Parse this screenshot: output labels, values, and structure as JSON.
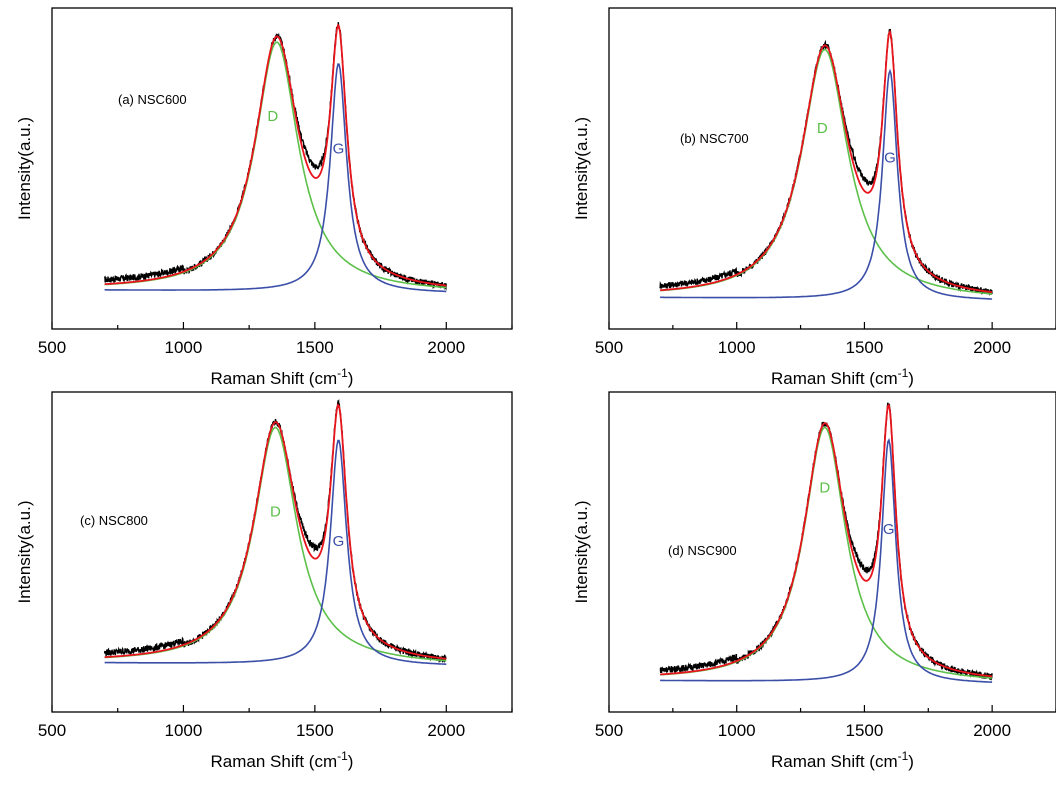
{
  "figure": {
    "peak_colors": {
      "measured": "#000000",
      "fit": "#e8141c",
      "D": "#5cc04a",
      "G": "#3b4fa8"
    }
  },
  "chart_data": [
    {
      "type": "line",
      "panel_label": "(a) NSC600",
      "xlabel": "Raman Shift (cm",
      "xlabel_sup": "-1",
      "xlabel_close": ")",
      "ylabel": "Intensity(a.u.)",
      "xlim": [
        500,
        2250
      ],
      "x_ticks": [
        500,
        1000,
        1500,
        2000
      ],
      "x_range_data": [
        700,
        2000
      ],
      "ylim": [
        0,
        1.08
      ],
      "baseline": 0.125,
      "D": {
        "center": 1355,
        "height": 0.84,
        "width": 200
      },
      "G": {
        "center": 1590,
        "height": 0.77,
        "width": 75
      },
      "peak_labels": [
        {
          "text": "D",
          "x": 1340,
          "y": 0.7,
          "color": "#5cc04a"
        },
        {
          "text": "G",
          "x": 1590,
          "y": 0.59,
          "color": "#3b4fa8"
        }
      ],
      "series": [
        {
          "name": "D",
          "color": "#5cc04a"
        },
        {
          "name": "G",
          "color": "#3b4fa8"
        }
      ]
    },
    {
      "type": "line",
      "panel_label": "(b) NSC700",
      "xlabel": "Raman Shift (cm",
      "xlabel_sup": "-1",
      "xlabel_close": ")",
      "ylabel": "Intensity(a.u.)",
      "xlim": [
        500,
        2250
      ],
      "x_ticks": [
        500,
        1000,
        1500,
        2000
      ],
      "x_range_data": [
        700,
        2000
      ],
      "ylim": [
        0,
        1.08
      ],
      "baseline": 0.1,
      "D": {
        "center": 1345,
        "height": 0.84,
        "width": 220
      },
      "G": {
        "center": 1600,
        "height": 0.77,
        "width": 70
      },
      "peak_labels": [
        {
          "text": "D",
          "x": 1335,
          "y": 0.66,
          "color": "#5cc04a"
        },
        {
          "text": "G",
          "x": 1600,
          "y": 0.56,
          "color": "#3b4fa8"
        }
      ],
      "series": [
        {
          "name": "D",
          "color": "#5cc04a"
        },
        {
          "name": "G",
          "color": "#3b4fa8"
        }
      ]
    },
    {
      "type": "line",
      "panel_label": "(c) NSC800",
      "xlabel": "Raman Shift (cm",
      "xlabel_sup": "-1",
      "xlabel_close": ")",
      "ylabel": "Intensity(a.u.)",
      "xlim": [
        500,
        2250
      ],
      "x_ticks": [
        500,
        1000,
        1500,
        2000
      ],
      "x_range_data": [
        700,
        2000
      ],
      "ylim": [
        0,
        1.08
      ],
      "baseline": 0.16,
      "D": {
        "center": 1350,
        "height": 0.8,
        "width": 200
      },
      "G": {
        "center": 1590,
        "height": 0.76,
        "width": 75
      },
      "peak_labels": [
        {
          "text": "D",
          "x": 1350,
          "y": 0.66,
          "color": "#5cc04a"
        },
        {
          "text": "G",
          "x": 1590,
          "y": 0.56,
          "color": "#3b4fa8"
        }
      ],
      "series": [
        {
          "name": "D",
          "color": "#5cc04a"
        },
        {
          "name": "G",
          "color": "#3b4fa8"
        }
      ]
    },
    {
      "type": "line",
      "panel_label": "(d) NSC900",
      "xlabel": "Raman Shift (cm",
      "xlabel_sup": "-1",
      "xlabel_close": ")",
      "ylabel": "Intensity(a.u.)",
      "xlim": [
        500,
        2250
      ],
      "x_ticks": [
        500,
        1000,
        1500,
        2000
      ],
      "x_range_data": [
        700,
        2000
      ],
      "ylim": [
        0,
        1.08
      ],
      "baseline": 0.1,
      "D": {
        "center": 1345,
        "height": 0.86,
        "width": 200
      },
      "G": {
        "center": 1595,
        "height": 0.82,
        "width": 68
      },
      "peak_labels": [
        {
          "text": "D",
          "x": 1345,
          "y": 0.74,
          "color": "#5cc04a"
        },
        {
          "text": "G",
          "x": 1595,
          "y": 0.6,
          "color": "#3b4fa8"
        }
      ],
      "series": [
        {
          "name": "D",
          "color": "#5cc04a"
        },
        {
          "name": "G",
          "color": "#3b4fa8"
        }
      ]
    }
  ]
}
